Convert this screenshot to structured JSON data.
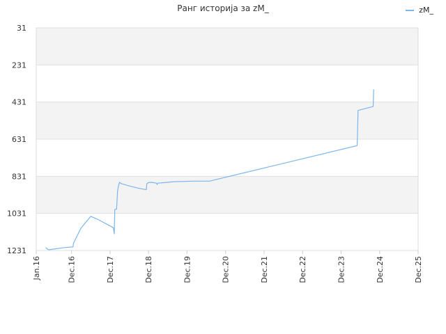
{
  "chart_data": {
    "type": "line",
    "title": "Ранг историја за zM_",
    "xlabel": "",
    "ylabel": "",
    "y_inverted": true,
    "ylim": [
      31,
      1231
    ],
    "yticks": [
      31,
      231,
      431,
      631,
      831,
      1031,
      1231
    ],
    "xlim": [
      "2016-01-01",
      "2025-12-01"
    ],
    "xticks": [
      {
        "date": "2016-01-01",
        "label": "Jan.16"
      },
      {
        "date": "2016-12-01",
        "label": "Dec.16"
      },
      {
        "date": "2017-12-01",
        "label": "Dec.17"
      },
      {
        "date": "2018-12-01",
        "label": "Dec.18"
      },
      {
        "date": "2019-12-01",
        "label": "Dec.19"
      },
      {
        "date": "2020-12-01",
        "label": "Dec.20"
      },
      {
        "date": "2021-12-01",
        "label": "Dec.21"
      },
      {
        "date": "2022-12-01",
        "label": "Dec.22"
      },
      {
        "date": "2023-12-01",
        "label": "Dec.23"
      },
      {
        "date": "2024-12-01",
        "label": "Dec.24"
      },
      {
        "date": "2025-12-01",
        "label": "Dec.25"
      }
    ],
    "grid": true,
    "alternating_bands": true,
    "legend_position": "top-right",
    "series": [
      {
        "name": "zM_",
        "color": "#7cb5ec",
        "points": [
          [
            "2016-04-01",
            1215
          ],
          [
            "2016-04-15",
            1223
          ],
          [
            "2016-05-01",
            1227
          ],
          [
            "2016-07-01",
            1222
          ],
          [
            "2016-10-01",
            1215
          ],
          [
            "2016-12-15",
            1212
          ],
          [
            "2016-12-20",
            1190
          ],
          [
            "2017-03-01",
            1110
          ],
          [
            "2017-06-01",
            1047
          ],
          [
            "2017-08-01",
            1062
          ],
          [
            "2018-01-01",
            1108
          ],
          [
            "2018-01-10",
            1141
          ],
          [
            "2018-01-15",
            1010
          ],
          [
            "2018-02-01",
            1008
          ],
          [
            "2018-02-10",
            910
          ],
          [
            "2018-02-20",
            880
          ],
          [
            "2018-03-01",
            863
          ],
          [
            "2018-03-15",
            870
          ],
          [
            "2018-06-01",
            883
          ],
          [
            "2018-09-01",
            896
          ],
          [
            "2018-11-01",
            902
          ],
          [
            "2018-11-10",
            903
          ],
          [
            "2018-11-15",
            871
          ],
          [
            "2018-12-01",
            865
          ],
          [
            "2019-01-01",
            864
          ],
          [
            "2019-02-15",
            868
          ],
          [
            "2019-02-20",
            875
          ],
          [
            "2019-03-01",
            868
          ],
          [
            "2019-05-01",
            865
          ],
          [
            "2019-08-01",
            860
          ],
          [
            "2020-02-01",
            857
          ],
          [
            "2020-07-01",
            857
          ],
          [
            "2024-05-01",
            666
          ],
          [
            "2024-05-05",
            613
          ],
          [
            "2024-05-10",
            476
          ],
          [
            "2024-10-01",
            455
          ],
          [
            "2024-10-05",
            363
          ]
        ]
      }
    ]
  }
}
